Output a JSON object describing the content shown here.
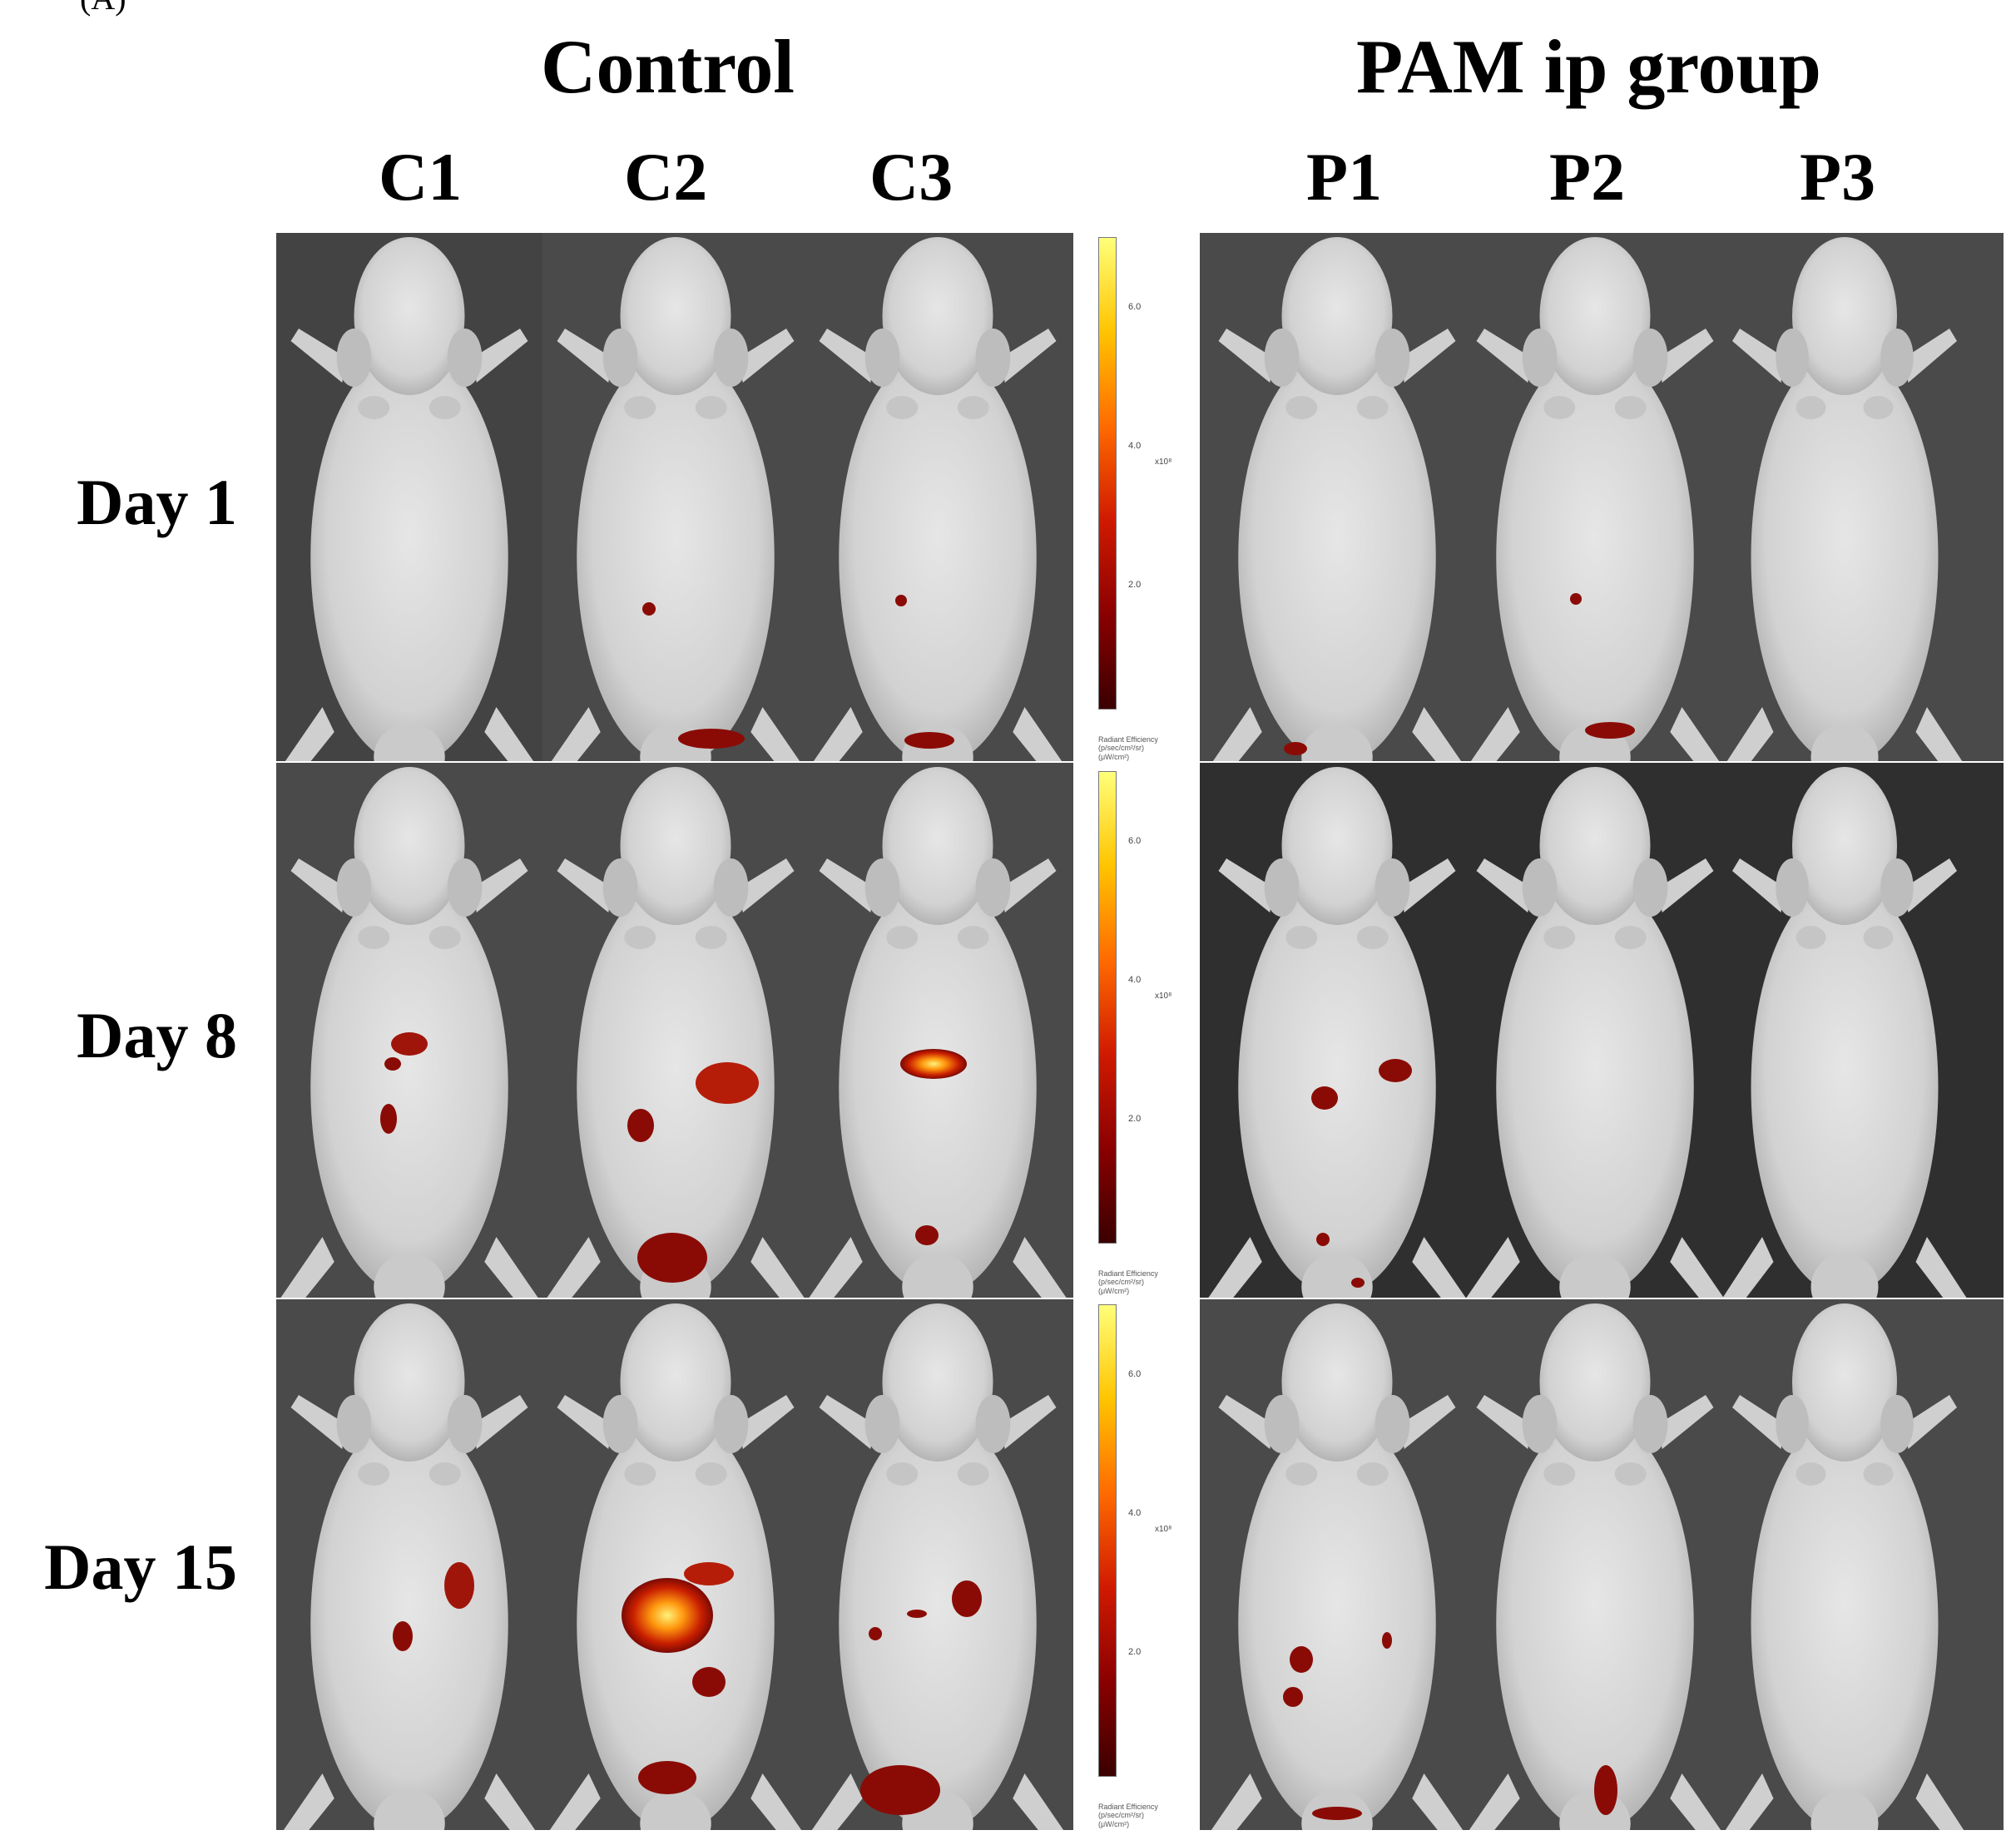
{
  "corner_label": "(A)",
  "groups": [
    {
      "title": "Control",
      "columns": [
        "C1",
        "C2",
        "C3"
      ]
    },
    {
      "title": "PAM ip group",
      "columns": [
        "P1",
        "P2",
        "P3"
      ]
    }
  ],
  "rows": [
    "Day 1",
    "Day 8",
    "Day 15"
  ],
  "colorbar": {
    "ticks": [
      "6.0",
      "4.0",
      "2.0"
    ],
    "multiplier": "x10⁸",
    "caption_lines": [
      "Radiant Efficiency",
      "(p/sec/cm²/sr)",
      "(μW/cm²)"
    ],
    "gradient": [
      "#3a0000",
      "#8a0000",
      "#d01a00",
      "#ff6a00",
      "#ffc400",
      "#ffff7a"
    ]
  },
  "colors": {
    "background_dark": "#4a4a4a",
    "mouse_body": "#d9d9d9",
    "signal_low": "#8a0b05",
    "signal_mid": "#cc2200",
    "signal_high": "#ffe84a"
  }
}
